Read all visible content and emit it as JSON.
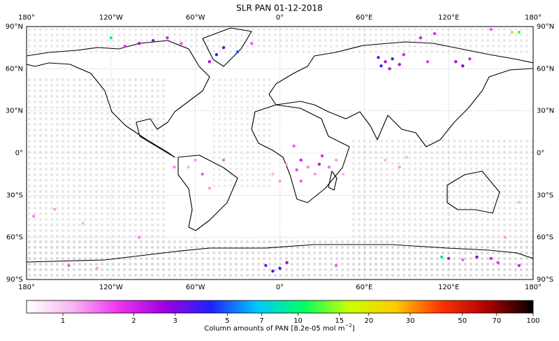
{
  "chart_data": {
    "type": "map",
    "title": "SLR PAN 01-12-2018",
    "xlim": [
      -180,
      180
    ],
    "ylim": [
      -90,
      90
    ],
    "xticks": [
      {
        "value": -180,
        "label": "180°"
      },
      {
        "value": -120,
        "label": "120°W"
      },
      {
        "value": -60,
        "label": "60°W"
      },
      {
        "value": 0,
        "label": "0°"
      },
      {
        "value": 60,
        "label": "60°E"
      },
      {
        "value": 120,
        "label": "120°E"
      },
      {
        "value": 180,
        "label": "180°"
      }
    ],
    "yticks": [
      {
        "value": 90,
        "label": "90°N"
      },
      {
        "value": 60,
        "label": "60°N"
      },
      {
        "value": 30,
        "label": "30°N"
      },
      {
        "value": 0,
        "label": "0°"
      },
      {
        "value": -30,
        "label": "30°S"
      },
      {
        "value": -60,
        "label": "60°S"
      },
      {
        "value": -90,
        "label": "90°S"
      }
    ],
    "grid": true,
    "points": {
      "lon": [
        10,
        15,
        20,
        25,
        30,
        35,
        40,
        12,
        5,
        -5,
        0,
        45,
        15,
        28,
        70,
        75,
        80,
        85,
        72,
        88,
        78,
        105,
        125,
        130,
        135,
        -45,
        -40,
        -50,
        -30,
        -20,
        -100,
        -90,
        -110,
        -80,
        -120,
        -70,
        -60,
        -55,
        -65,
        -50,
        -75,
        -40,
        75,
        85,
        90,
        -10,
        0,
        5,
        -5,
        120,
        130,
        140,
        150,
        155,
        115,
        40,
        -150,
        -130,
        170,
        -160,
        -140,
        -100,
        160,
        170,
        -175,
        100,
        110,
        150,
        165,
        170
      ],
      "lat": [
        5,
        -5,
        -10,
        -15,
        -2,
        -10,
        -5,
        -12,
        -8,
        -15,
        -20,
        -15,
        -20,
        -8,
        68,
        65,
        67,
        63,
        62,
        70,
        60,
        65,
        65,
        62,
        67,
        70,
        75,
        65,
        72,
        78,
        78,
        80,
        76,
        82,
        82,
        78,
        -5,
        -15,
        -10,
        -25,
        -10,
        -5,
        -5,
        -10,
        -3,
        -80,
        -82,
        -78,
        -84,
        -75,
        -76,
        -74,
        -75,
        -78,
        -74,
        -80,
        -80,
        -82,
        -80,
        -40,
        -50,
        -60,
        -60,
        -35,
        -45,
        82,
        85,
        88,
        86,
        86
      ],
      "values": [
        1.5,
        2,
        1.3,
        1.2,
        1.8,
        1.4,
        1.2,
        1.6,
        1.1,
        1.1,
        1.2,
        1.1,
        1.5,
        2.2,
        3,
        2.5,
        3.5,
        2.5,
        4,
        2,
        2.2,
        1.8,
        2.5,
        3,
        2,
        4,
        3,
        2.5,
        5,
        1.5,
        2.5,
        3,
        1.8,
        2,
        10,
        1.5,
        1.2,
        1.5,
        1.1,
        1.2,
        1.3,
        1.4,
        1.1,
        1.2,
        1.1,
        3,
        4,
        2.5,
        3.5,
        2.5,
        1.5,
        3,
        2,
        1.8,
        8,
        1.5,
        1.5,
        1.2,
        2,
        1.2,
        1.1,
        1.3,
        1.2,
        1.1,
        1.3,
        2,
        1.8,
        1.5,
        15,
        12
      ]
    },
    "colorbar": {
      "clim": [
        0.7,
        100
      ],
      "log": true,
      "ticks": [
        1,
        2,
        3,
        5,
        7,
        10,
        15,
        20,
        30,
        50,
        70,
        100
      ],
      "colormap": [
        "#ffffff",
        "#f7b6f2",
        "#ee33ee",
        "#a000e0",
        "#2020ff",
        "#00c8ff",
        "#00ff66",
        "#c8ff00",
        "#ffcc00",
        "#ff3300",
        "#b00000",
        "#000000"
      ],
      "label": "Column amounts of PAN [8.2e-05 mol m",
      "label_exponent": "−2",
      "label_end": "]"
    }
  }
}
